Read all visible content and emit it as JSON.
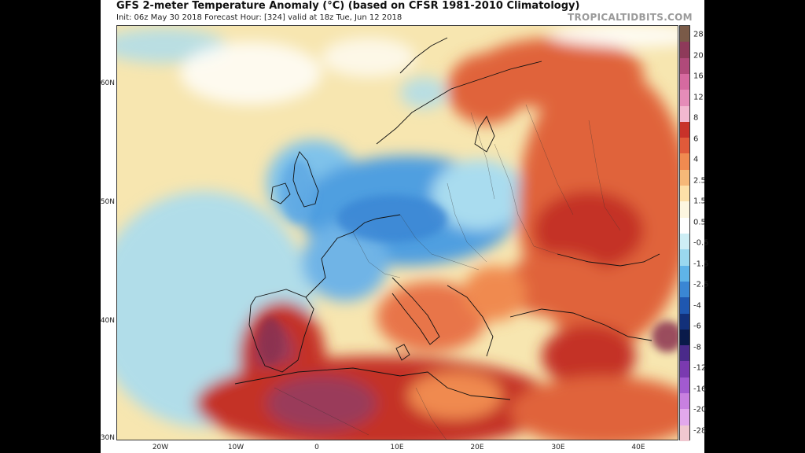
{
  "header": {
    "title": "GFS 2-meter Temperature Anomaly (°C) (based on CFSR 1981-2010 Climatology)",
    "subtitle": "Init: 06z May 30 2018   Forecast Hour: [324]   valid at 18z Tue, Jun 12 2018",
    "brand": "TROPICALTIDBITS.COM"
  },
  "axes": {
    "lat_labels": [
      "60N",
      "50N",
      "40N",
      "30N"
    ],
    "lon_labels": [
      "20W",
      "10W",
      "0",
      "10E",
      "20E",
      "30E",
      "40E"
    ]
  },
  "colorbar": {
    "labels": [
      "28",
      "20",
      "16",
      "12",
      "8",
      "6",
      "4",
      "2.5",
      "1.5",
      "0.5",
      "-0.5",
      "-1.5",
      "-2.5",
      "-4",
      "-6",
      "-8",
      "-12",
      "-16",
      "-20",
      "-28"
    ],
    "colors": [
      "#7a5a48",
      "#8e3a5a",
      "#b04a7a",
      "#d66aa0",
      "#e58cb8",
      "#f2b8d0",
      "#c8322a",
      "#e05a3a",
      "#f08a50",
      "#f6b878",
      "#fde0a8",
      "#fdf6e0",
      "#ffffff",
      "#cdeef5",
      "#9ad8ef",
      "#5fb4e8",
      "#3a86d4",
      "#1f57b0",
      "#12307a",
      "#0a1a4a",
      "#4a2a8a",
      "#7a3ab0",
      "#a25ad0",
      "#c880e0",
      "#e2a8ec",
      "#f0c8d0"
    ]
  },
  "map_regions": {
    "ocean": "#f7e6b0",
    "atlantic_cold": "#a9dcef",
    "cold_core": "#4f9fe0",
    "hot_east": "#e0643a",
    "very_hot": "#c43028",
    "extreme": "#9a3a5a"
  }
}
